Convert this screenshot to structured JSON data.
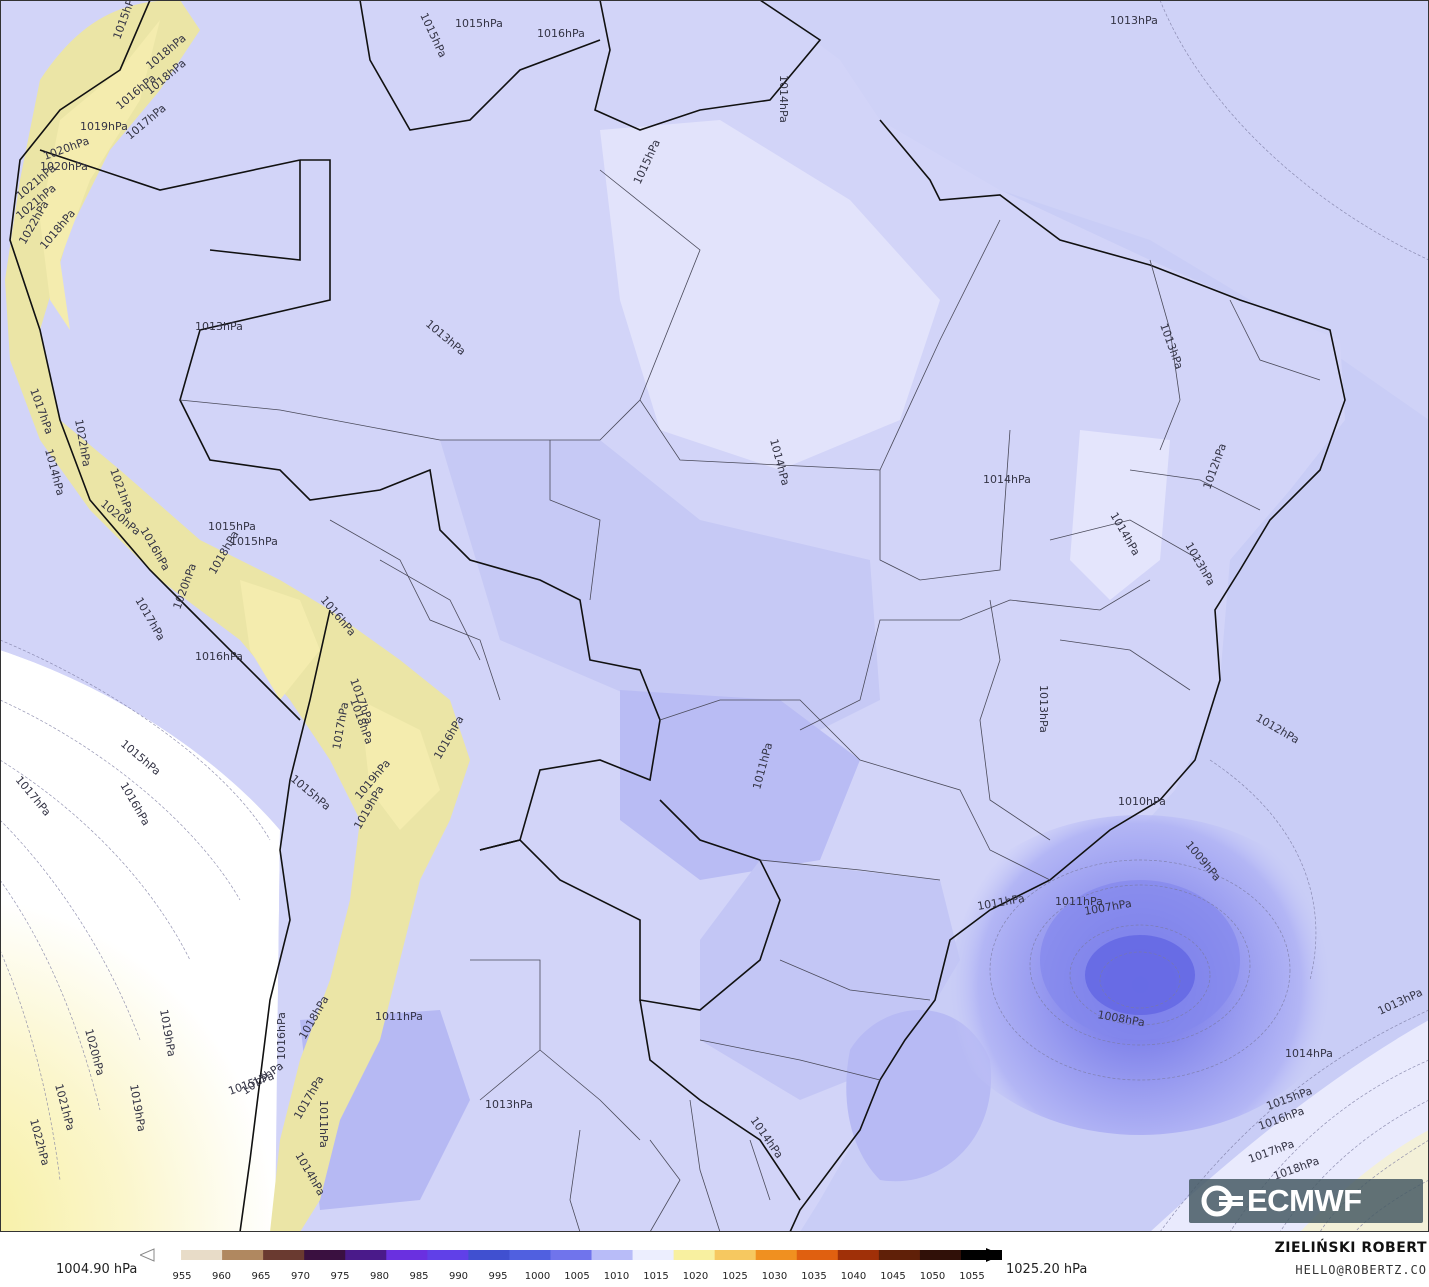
{
  "map": {
    "colors": {
      "ocean_base": "#c9cdf6",
      "land_base": "#d3d5f8",
      "low_pressure": "#8f93ef",
      "deep_low": "#6c6fe6",
      "high_pressure": "#f8f3b8",
      "andes": "#ece6a4",
      "white_zone": "#ffffff",
      "border": "#111111"
    },
    "isobar_labels": [
      "1013hPa",
      "1015hPa",
      "1016hPa",
      "1015hPa",
      "1014hPa",
      "1015hPa",
      "1013hPa",
      "1013hPa",
      "1014hPa",
      "1014hPa",
      "1013hPa",
      "1012hPa",
      "1013hPa",
      "1014hPa",
      "1013hPa",
      "1012hPa",
      "1010hPa",
      "1009hPa",
      "1011hPa",
      "1007hPa",
      "1008hPa",
      "1011hPa",
      "1011hPa",
      "1013hPa",
      "1014hPa",
      "1013hPa",
      "1015hPa",
      "1016hPa",
      "1017hPa",
      "1018hPa",
      "1019hPa",
      "1014hPa",
      "1016hPa",
      "1017hPa",
      "1015hPa",
      "1019hPa",
      "1017hPa",
      "1015hPa",
      "1016hPa",
      "1015hPa",
      "1020hPa",
      "1016hPa",
      "1017hPa",
      "1015hPa",
      "1016hPa",
      "1018hPa",
      "1020hPa",
      "1019hPa",
      "1021hPa",
      "1022hPa",
      "1017hPa",
      "1018hPa",
      "1020hPa",
      "1021hPa",
      "1022hPa",
      "1011hPa",
      "1015hPa",
      "1014hPa",
      "1011hPa",
      "1018hPa",
      "1019hPa",
      "1020hPa",
      "1021hPa",
      "1022hPa",
      "1016hPa",
      "1018hPa",
      "1017hPa",
      "1014hPa",
      "1015hPa",
      "1019hPa",
      "1021hPa",
      "1020hPa",
      "1017hPa",
      "1016hPa",
      "1018hPa",
      "1015hPa",
      "1017hPa",
      "1016hPa",
      "1018hPa"
    ]
  },
  "legend": {
    "min_label": "1004.90 hPa",
    "max_label": "1025.20 hPa",
    "ticks": [
      "955",
      "960",
      "965",
      "970",
      "975",
      "980",
      "985",
      "990",
      "995",
      "1000",
      "1005",
      "1010",
      "1015",
      "1020",
      "1025",
      "1030",
      "1035",
      "1040",
      "1045",
      "1050",
      "1055"
    ],
    "colors": [
      "#ffffff",
      "#e8dcc8",
      "#b08860",
      "#6a3a30",
      "#3a1040",
      "#4a1a8a",
      "#6a30e0",
      "#6040e8",
      "#4050d0",
      "#5060e0",
      "#7074ec",
      "#b8bcf8",
      "#eceefe",
      "#f8f0a0",
      "#f6c860",
      "#f09020",
      "#e06010",
      "#a03008",
      "#602008",
      "#301008",
      "#000000"
    ]
  },
  "author": {
    "name": "ZIELIŃSKI ROBERT",
    "email": "HELLO@ROBERTZ.CO"
  },
  "logo": {
    "text": "ECMWF",
    "icon": "ecmwf-logo-icon"
  }
}
